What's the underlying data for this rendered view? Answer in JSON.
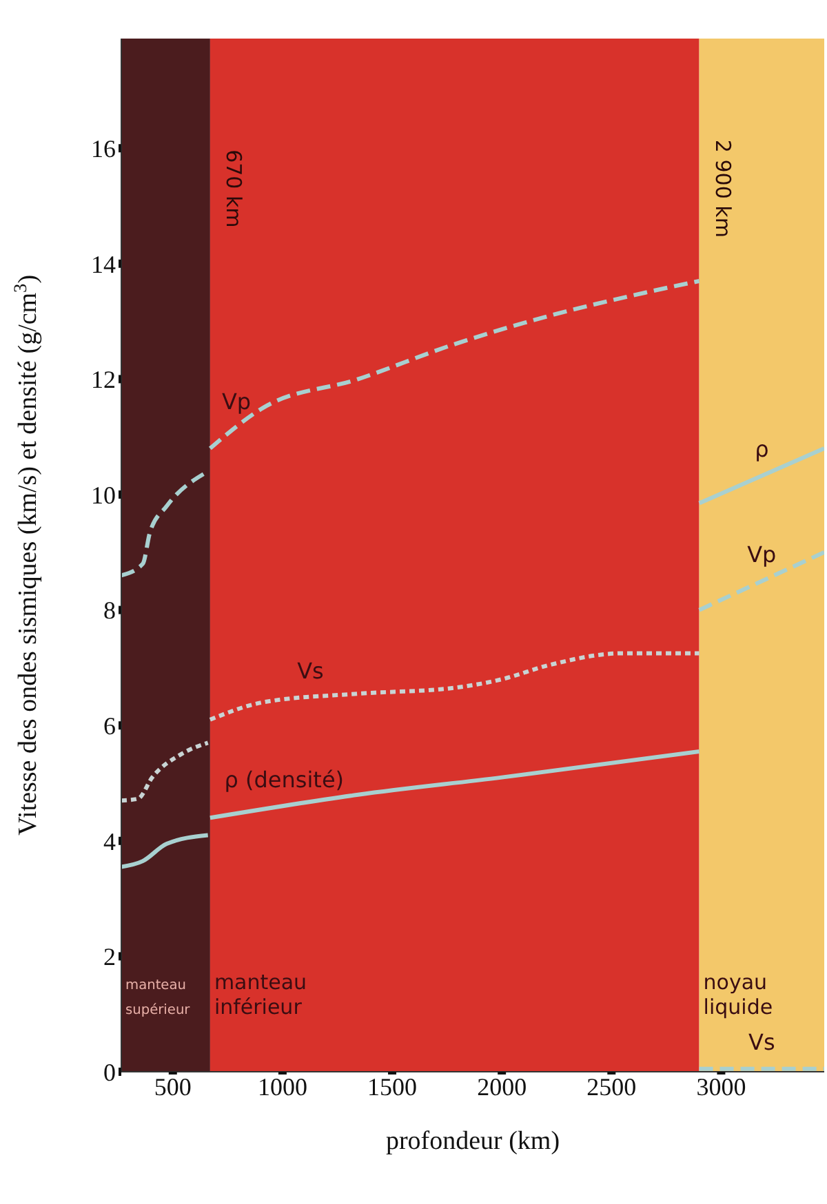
{
  "chart_data": {
    "type": "line",
    "xlabel": "profondeur (km)",
    "ylabel": "Vitesse des ondes sismiques (km/s) et densité (g/cm$^{3}$)",
    "xlim": [
      265,
      3470
    ],
    "ylim": [
      0,
      17.9
    ],
    "xticks": [
      500,
      1000,
      1500,
      2000,
      2500,
      3000
    ],
    "yticks": [
      0,
      2,
      4,
      6,
      8,
      10,
      12,
      14,
      16
    ],
    "grid": false,
    "legend": false,
    "marker": "none",
    "bands": [
      {
        "axis": "x",
        "from": 265,
        "to": 670,
        "label": "manteau supérieur",
        "color": "#4b1c1e"
      },
      {
        "axis": "x",
        "from": 670,
        "to": 2900,
        "label": "manteau inférieur",
        "color": "#d8322b"
      },
      {
        "axis": "x",
        "from": 2900,
        "to": 3470,
        "label": "noyau liquide",
        "color": "#f3c86a"
      }
    ],
    "annotations": [
      {
        "text": "670 km",
        "x": 670,
        "y": 15.3
      },
      {
        "text": "2 900 km",
        "x": 2900,
        "y": 15.3
      }
    ],
    "series": [
      {
        "name": "Vp",
        "color": "#a8d0d0",
        "line_style": "dashed",
        "x": [
          265,
          363,
          396,
          472,
          660,
          665,
          670,
          910,
          1345,
          1780,
          2220,
          2655,
          2900
        ],
        "values": [
          8.6,
          8.8,
          9.35,
          9.8,
          10.4,
          null,
          10.8,
          11.5,
          12.0,
          12.6,
          13.1,
          13.5,
          13.7
        ]
      },
      {
        "name": "Vs",
        "color": "#c8d4d4",
        "line_style": "dotted",
        "x": [
          265,
          341,
          406,
          537,
          660,
          665,
          670,
          910,
          1345,
          1780,
          2000,
          2220,
          2550,
          2900
        ],
        "values": [
          4.7,
          4.73,
          5.1,
          5.5,
          5.7,
          null,
          6.1,
          6.4,
          6.55,
          6.65,
          6.8,
          7.05,
          7.25,
          7.25
        ]
      },
      {
        "name": "ρ (densité)",
        "color": "#a8d0d0",
        "line_style": "solid",
        "x": [
          265,
          363,
          472,
          660,
          665,
          670,
          1345,
          2000,
          2900
        ],
        "values": [
          3.55,
          3.65,
          3.95,
          4.1,
          null,
          4.4,
          4.8,
          5.1,
          5.55
        ]
      },
      {
        "name": "ρ",
        "color": "#a8d0d0",
        "line_style": "solid",
        "x": [
          2900,
          3470
        ],
        "values": [
          9.85,
          10.8
        ]
      },
      {
        "name": "Vp",
        "color": "#a8d0d0",
        "line_style": "dashed",
        "x": [
          2900,
          3470
        ],
        "values": [
          8.0,
          9.0
        ]
      },
      {
        "name": "Vs",
        "color": "#a8d0d0",
        "line_style": "dashed",
        "x": [
          2900,
          3470
        ],
        "values": [
          0.05,
          0.05
        ]
      }
    ]
  }
}
